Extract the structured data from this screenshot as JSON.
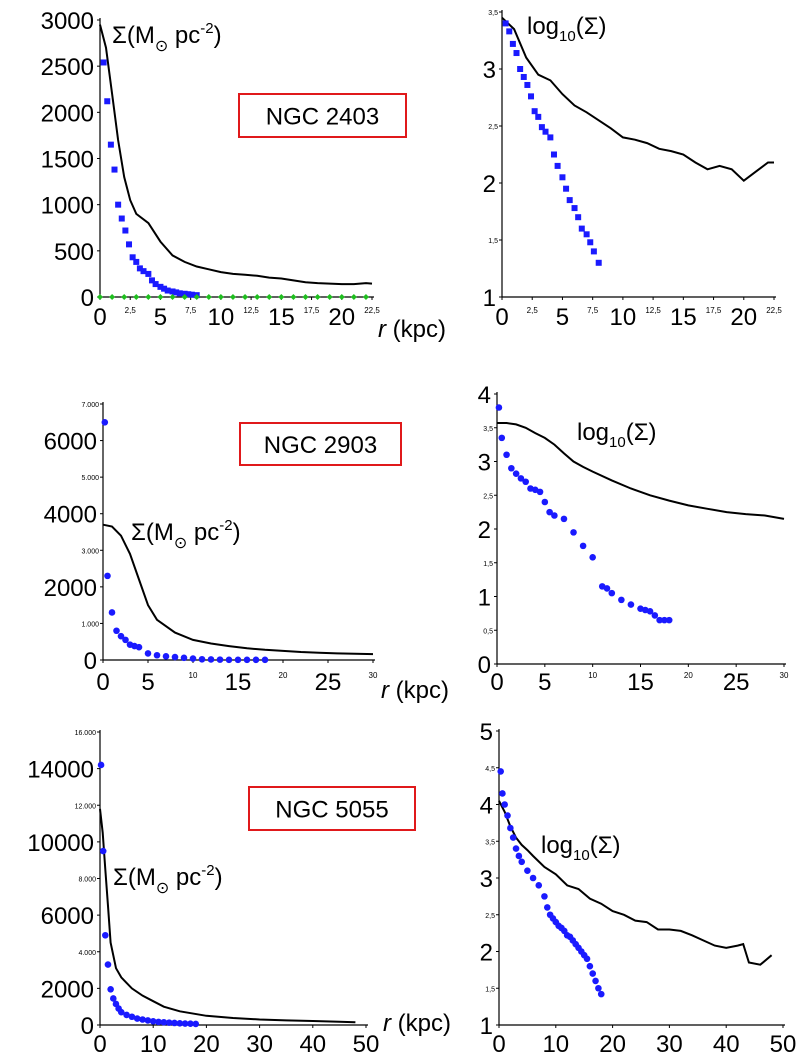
{
  "labels": {
    "sigma_label": "Σ(M⊙ pc-2)",
    "sigma_main": "Σ(M",
    "sun_symbol": "⊙",
    "sigma_unit": " pc",
    "sigma_exp": "-2",
    "sigma_close": ")",
    "log_main": "log",
    "log_sub": "10",
    "log_arg": "(Σ)",
    "r_italic": "r",
    "r_unit": " (kpc)"
  },
  "colors": {
    "model_curve": "#000000",
    "data_points": "#1a1aff",
    "green_points": "#1fbf1f",
    "box_border": "#e0191b"
  },
  "chart_data": [
    {
      "type": "line",
      "galaxy": "NGC 2403",
      "panel": "linear",
      "xlabel": "r (kpc)",
      "ylabel": "Σ(M⊙ pc-2)",
      "xlim": [
        0,
        22.5
      ],
      "ylim": [
        0,
        3000
      ],
      "x_ticks_big": [
        "0",
        "5",
        "10",
        "15",
        "20"
      ],
      "x_ticks_small": [
        "2,5",
        "7,5",
        "12,5",
        "17,5",
        "22,5"
      ],
      "y_ticks_big": [
        "0",
        "500",
        "1000",
        "1500",
        "2000",
        "2500",
        "3000"
      ],
      "series": [
        {
          "style": "line",
          "x": [
            0,
            0.5,
            1,
            1.5,
            2,
            2.5,
            3,
            4,
            5,
            6,
            7,
            8,
            9,
            10,
            11,
            12,
            13,
            14,
            15,
            16,
            17,
            18,
            19,
            20,
            21,
            22,
            22.5
          ],
          "values": [
            2950,
            2700,
            2200,
            1700,
            1300,
            1050,
            900,
            800,
            600,
            450,
            380,
            330,
            300,
            270,
            250,
            240,
            230,
            210,
            200,
            180,
            160,
            150,
            145,
            140,
            140,
            150,
            145
          ]
        },
        {
          "style": "square",
          "x": [
            0.3,
            0.6,
            0.9,
            1.2,
            1.5,
            1.8,
            2.1,
            2.4,
            2.7,
            3.0,
            3.3,
            3.6,
            4.0,
            4.3,
            4.6,
            5.0,
            5.3,
            5.6,
            6.0,
            6.3,
            6.6,
            7.0,
            7.3,
            7.6,
            8.0
          ],
          "values": [
            2540,
            2120,
            1650,
            1380,
            1000,
            850,
            720,
            570,
            430,
            380,
            310,
            280,
            250,
            180,
            140,
            110,
            90,
            70,
            60,
            50,
            40,
            35,
            30,
            25,
            20
          ]
        },
        {
          "style": "diamond",
          "x": [
            0,
            1,
            2,
            3,
            4,
            5,
            6,
            7,
            8,
            9,
            10,
            11,
            12,
            13,
            14,
            15,
            16,
            17,
            18,
            19,
            20,
            21,
            22
          ],
          "values": [
            0,
            0,
            0,
            0,
            0,
            0,
            0,
            0,
            0,
            0,
            0,
            0,
            0,
            0,
            0,
            0,
            0,
            0,
            0,
            0,
            0,
            0,
            0
          ]
        }
      ]
    },
    {
      "type": "line",
      "galaxy": "NGC 2403",
      "panel": "log",
      "ylabel": "log10(Σ)",
      "xlim": [
        0,
        22.5
      ],
      "ylim": [
        1,
        3.5
      ],
      "x_ticks_big": [
        "0",
        "5",
        "10",
        "15",
        "20"
      ],
      "x_ticks_small": [
        "2,5",
        "7,5",
        "12,5",
        "17,5",
        "22,5"
      ],
      "y_ticks_big": [
        "1",
        "2",
        "3"
      ],
      "y_ticks_small": [
        "1,5",
        "2,5",
        "3,5"
      ],
      "series": [
        {
          "style": "line",
          "x": [
            0,
            1,
            2,
            3,
            4,
            5,
            6,
            7,
            8,
            9,
            10,
            11,
            12,
            13,
            14,
            15,
            16,
            17,
            18,
            19,
            20,
            21,
            22,
            22.5
          ],
          "values": [
            3.45,
            3.35,
            3.1,
            2.95,
            2.9,
            2.78,
            2.68,
            2.62,
            2.55,
            2.48,
            2.4,
            2.38,
            2.35,
            2.3,
            2.28,
            2.25,
            2.18,
            2.12,
            2.15,
            2.12,
            2.02,
            2.1,
            2.18,
            2.18
          ]
        },
        {
          "style": "square",
          "x": [
            0.3,
            0.6,
            0.9,
            1.2,
            1.5,
            1.8,
            2.1,
            2.4,
            2.7,
            3.0,
            3.3,
            3.6,
            4.0,
            4.3,
            4.6,
            5.0,
            5.3,
            5.6,
            6.0,
            6.3,
            6.6,
            7.0,
            7.3,
            7.6,
            8.0
          ],
          "values": [
            3.4,
            3.33,
            3.22,
            3.14,
            3.0,
            2.93,
            2.86,
            2.76,
            2.63,
            2.58,
            2.49,
            2.45,
            2.4,
            2.25,
            2.15,
            2.05,
            1.95,
            1.85,
            1.78,
            1.7,
            1.6,
            1.55,
            1.48,
            1.4,
            1.3
          ]
        }
      ]
    },
    {
      "type": "line",
      "galaxy": "NGC 2903",
      "panel": "linear",
      "xlabel": "r (kpc)",
      "ylabel": "Σ(M⊙ pc-2)",
      "xlim": [
        0,
        30
      ],
      "ylim": [
        0,
        7000
      ],
      "x_ticks_big": [
        "0",
        "5",
        "15",
        "25"
      ],
      "x_ticks_small": [
        "10",
        "20",
        "30"
      ],
      "y_ticks_big": [
        "0",
        "2000",
        "4000",
        "6000"
      ],
      "y_ticks_small": [
        "1.000",
        "3.000",
        "5.000",
        "7.000"
      ],
      "series": [
        {
          "style": "line",
          "x": [
            0,
            1,
            2,
            3,
            4,
            5,
            6,
            8,
            10,
            12,
            14,
            16,
            18,
            20,
            22,
            24,
            26,
            28,
            30
          ],
          "values": [
            3700,
            3650,
            3400,
            2900,
            2200,
            1500,
            1100,
            750,
            550,
            450,
            380,
            320,
            280,
            250,
            220,
            200,
            180,
            170,
            160
          ]
        },
        {
          "style": "circle",
          "x": [
            0.2,
            0.5,
            1,
            1.5,
            2,
            2.5,
            3,
            3.5,
            4,
            5,
            6,
            7,
            8,
            9,
            10,
            11,
            12,
            13,
            14,
            15,
            16,
            17,
            18
          ],
          "values": [
            6500,
            2300,
            1300,
            800,
            650,
            550,
            420,
            380,
            350,
            180,
            130,
            100,
            80,
            60,
            40,
            20,
            15,
            10,
            5,
            5,
            5,
            5,
            5
          ]
        }
      ]
    },
    {
      "type": "line",
      "galaxy": "NGC 2903",
      "panel": "log",
      "ylabel": "log10(Σ)",
      "xlim": [
        0,
        30
      ],
      "ylim": [
        0,
        4
      ],
      "x_ticks_big": [
        "0",
        "5",
        "15",
        "25"
      ],
      "x_ticks_small": [
        "10",
        "20",
        "30"
      ],
      "y_ticks_big": [
        "0",
        "1",
        "2",
        "3",
        "4"
      ],
      "y_ticks_small": [
        "0,5",
        "1,5",
        "2,5",
        "3,5"
      ],
      "series": [
        {
          "style": "line",
          "x": [
            0,
            1,
            2,
            3,
            4,
            5,
            6,
            7,
            8,
            9,
            10,
            12,
            14,
            16,
            18,
            20,
            22,
            24,
            26,
            28,
            30
          ],
          "values": [
            3.57,
            3.57,
            3.55,
            3.5,
            3.42,
            3.35,
            3.25,
            3.12,
            3.0,
            2.92,
            2.85,
            2.72,
            2.6,
            2.5,
            2.42,
            2.35,
            2.3,
            2.25,
            2.22,
            2.2,
            2.15
          ]
        },
        {
          "style": "circle",
          "x": [
            0.2,
            0.5,
            1,
            1.5,
            2,
            2.5,
            3,
            3.5,
            4,
            4.5,
            5,
            5.5,
            6,
            7,
            8,
            9,
            10,
            11,
            11.5,
            12,
            13,
            14,
            15,
            15.5,
            16,
            16.5,
            17,
            17.5,
            18
          ],
          "values": [
            3.8,
            3.35,
            3.1,
            2.9,
            2.82,
            2.75,
            2.7,
            2.6,
            2.58,
            2.55,
            2.4,
            2.25,
            2.2,
            2.15,
            1.95,
            1.75,
            1.58,
            1.15,
            1.12,
            1.05,
            0.95,
            0.88,
            0.82,
            0.8,
            0.78,
            0.72,
            0.65,
            0.65,
            0.65
          ]
        }
      ]
    },
    {
      "type": "line",
      "galaxy": "NGC 5055",
      "panel": "linear",
      "xlabel": "r (kpc)",
      "ylabel": "Σ(M⊙ pc-2)",
      "xlim": [
        0,
        50
      ],
      "ylim": [
        0,
        16000
      ],
      "x_ticks_big": [
        "0",
        "10",
        "20",
        "30",
        "40",
        "50"
      ],
      "y_ticks_big": [
        "0",
        "2000",
        "6000",
        "10000",
        "14000"
      ],
      "y_ticks_small": [
        "4.000",
        "8.000",
        "12.000",
        "16.000"
      ],
      "series": [
        {
          "style": "line",
          "x": [
            0,
            0.5,
            1,
            1.5,
            2,
            3,
            4,
            5,
            6,
            8,
            10,
            12,
            15,
            20,
            25,
            30,
            35,
            40,
            45,
            48
          ],
          "values": [
            11800,
            10500,
            8500,
            6500,
            4500,
            3100,
            2600,
            2300,
            2000,
            1600,
            1300,
            1000,
            750,
            500,
            380,
            300,
            250,
            220,
            180,
            150
          ]
        },
        {
          "style": "circle",
          "x": [
            0.2,
            0.6,
            1,
            1.5,
            2,
            2.5,
            3,
            3.5,
            4,
            5,
            6,
            7,
            8,
            9,
            10,
            11,
            12,
            13,
            14,
            15,
            16,
            17,
            18
          ],
          "values": [
            14200,
            9500,
            4900,
            3300,
            1950,
            1450,
            1150,
            900,
            700,
            550,
            450,
            350,
            300,
            250,
            200,
            170,
            150,
            130,
            110,
            90,
            80,
            70,
            60
          ]
        }
      ]
    },
    {
      "type": "line",
      "galaxy": "NGC 5055",
      "panel": "log",
      "ylabel": "log10(Σ)",
      "xlim": [
        0,
        50
      ],
      "ylim": [
        1,
        5
      ],
      "x_ticks_big": [
        "0",
        "10",
        "20",
        "30",
        "40",
        "50"
      ],
      "y_ticks_big": [
        "1",
        "2",
        "3",
        "4",
        "5"
      ],
      "y_ticks_small": [
        "1,5",
        "2,5",
        "3,5",
        "4,5"
      ],
      "series": [
        {
          "style": "line",
          "x": [
            0,
            1,
            2,
            3,
            4,
            5,
            6,
            8,
            10,
            12,
            14,
            16,
            18,
            20,
            22,
            24,
            26,
            28,
            30,
            32,
            34,
            36,
            38,
            40,
            42,
            43,
            44,
            46,
            48
          ],
          "values": [
            4.05,
            3.9,
            3.7,
            3.55,
            3.45,
            3.38,
            3.3,
            3.15,
            3.05,
            2.9,
            2.85,
            2.72,
            2.65,
            2.55,
            2.5,
            2.42,
            2.4,
            2.3,
            2.3,
            2.28,
            2.22,
            2.15,
            2.08,
            2.05,
            2.08,
            2.1,
            1.85,
            1.82,
            1.95
          ]
        },
        {
          "style": "circle",
          "x": [
            0.3,
            0.6,
            1,
            1.5,
            2,
            2.5,
            3,
            3.5,
            4,
            5,
            6,
            7,
            8,
            8.5,
            9,
            9.5,
            10,
            10.5,
            11,
            11.5,
            12,
            12.5,
            13,
            13.5,
            14,
            14.5,
            15,
            15.5,
            16,
            16.5,
            17,
            17.5,
            18
          ],
          "values": [
            4.45,
            4.15,
            4.0,
            3.85,
            3.68,
            3.55,
            3.4,
            3.3,
            3.22,
            3.1,
            3.0,
            2.9,
            2.75,
            2.6,
            2.5,
            2.45,
            2.4,
            2.35,
            2.32,
            2.28,
            2.22,
            2.2,
            2.15,
            2.1,
            2.05,
            2.0,
            1.95,
            1.9,
            1.8,
            1.7,
            1.6,
            1.5,
            1.42
          ]
        }
      ]
    }
  ],
  "name_boxes": [
    "NGC 2403",
    "NGC 2903",
    "NGC 5055"
  ]
}
